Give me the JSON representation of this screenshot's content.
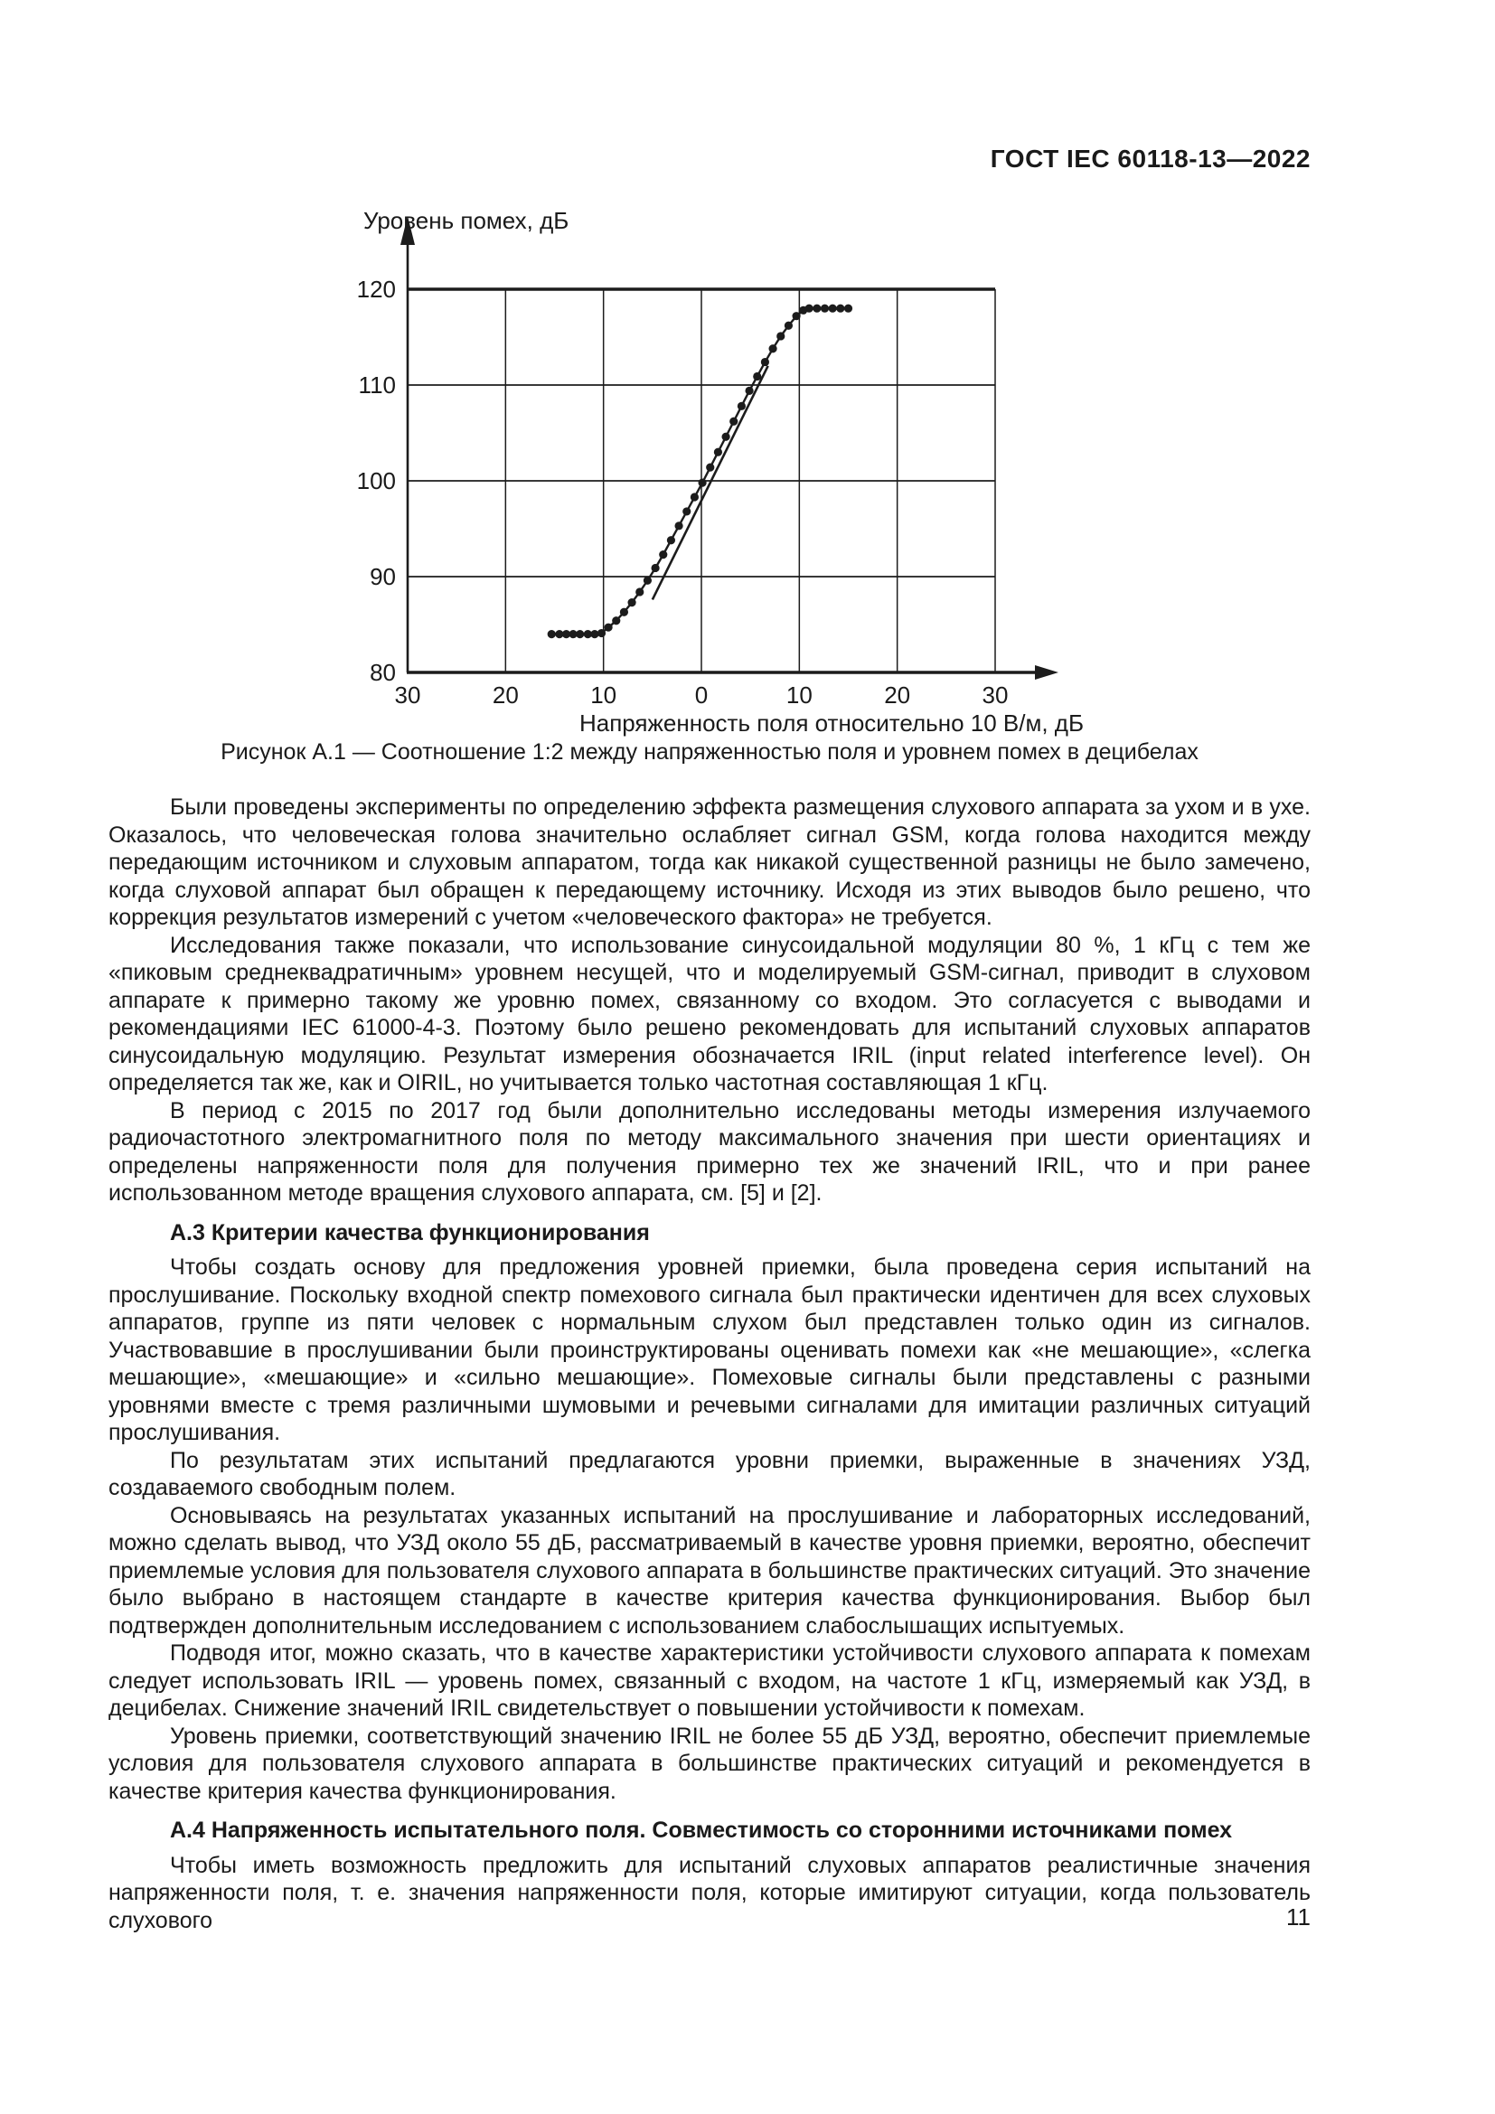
{
  "page": {
    "header": "ГОСТ IEC 60118-13—2022",
    "page_number": "11"
  },
  "figure": {
    "caption": "Рисунок А.1 — Соотношение 1:2 между напряженностью поля и уровнем помех в децибелах"
  },
  "chart_data": {
    "type": "scatter",
    "title": "",
    "ylabel": "Уровень помех, дБ",
    "xlabel": "Напряженность поля относительно 10 В/м, дБ",
    "xlim": [
      -30,
      30
    ],
    "ylim": [
      80,
      120
    ],
    "x_ticks": [
      -30,
      -20,
      -10,
      0,
      10,
      20,
      30
    ],
    "x_tick_labels": [
      "30",
      "20",
      "10",
      "0",
      "10",
      "20",
      "30"
    ],
    "y_ticks": [
      80,
      90,
      100,
      110,
      120
    ],
    "y_tick_labels": [
      "80",
      "90",
      "100",
      "110",
      "120"
    ],
    "grid": true,
    "legend": false,
    "ink_color": "#1c1c1c",
    "series": [
      {
        "name": "measured-interference-level",
        "style": "dots-with-line",
        "points": [
          [
            -15.3,
            84
          ],
          [
            -14.5,
            84
          ],
          [
            -13.8,
            84
          ],
          [
            -13.1,
            84
          ],
          [
            -12.4,
            84
          ],
          [
            -11.6,
            84
          ],
          [
            -10.9,
            84
          ],
          [
            -10.2,
            84.1
          ],
          [
            -9.5,
            84.7
          ],
          [
            -8.7,
            85.4
          ],
          [
            -7.9,
            86.3
          ],
          [
            -7.1,
            87.3
          ],
          [
            -6.3,
            88.4
          ],
          [
            -5.5,
            89.6
          ],
          [
            -4.7,
            90.9
          ],
          [
            -3.9,
            92.3
          ],
          [
            -3.1,
            93.8
          ],
          [
            -2.3,
            95.3
          ],
          [
            -1.5,
            96.8
          ],
          [
            -0.7,
            98.3
          ],
          [
            0.1,
            99.8
          ],
          [
            0.9,
            101.4
          ],
          [
            1.7,
            103
          ],
          [
            2.5,
            104.6
          ],
          [
            3.3,
            106.2
          ],
          [
            4.1,
            107.8
          ],
          [
            4.9,
            109.4
          ],
          [
            5.7,
            110.9
          ],
          [
            6.5,
            112.4
          ],
          [
            7.3,
            113.8
          ],
          [
            8.1,
            115.1
          ],
          [
            8.9,
            116.2
          ],
          [
            9.7,
            117.2
          ],
          [
            10.4,
            117.8
          ],
          [
            11,
            118
          ],
          [
            11.8,
            118
          ],
          [
            12.6,
            118
          ],
          [
            13.4,
            118
          ],
          [
            14.2,
            118
          ],
          [
            15,
            118
          ]
        ]
      },
      {
        "name": "one-to-two-reference-line",
        "style": "line",
        "points": [
          [
            -5.0,
            87.6
          ],
          [
            6.8,
            112.0
          ]
        ]
      }
    ]
  },
  "content": {
    "blocks": [
      {
        "type": "p",
        "text": "Были проведены эксперименты по определению эффекта размещения слухового аппарата за ухом и в ухе. Оказалось, что человеческая голова значительно ослабляет сигнал GSM, когда голова находится между передающим источником и слуховым аппаратом, тогда как никакой существенной разницы не было замечено, когда слуховой аппарат был обращен к передающему источнику. Исходя из этих выводов было решено, что коррекция результатов измерений с учетом «человеческого фактора» не требуется."
      },
      {
        "type": "p",
        "text": "Исследования также показали, что использование синусоидальной модуляции 80 %, 1 кГц с тем же «пиковым среднеквадратичным» уровнем несущей, что и моделируемый GSM-сигнал, приводит в слуховом аппарате к примерно такому же уровню помех, связанному со входом. Это согласуется с выводами и рекомендациями IEC 61000-4-3. Поэтому было решено рекомендовать для испытаний слуховых аппаратов синусоидальную модуляцию. Результат измерения обозначается IRIL (input related interference level). Он определяется так же, как и OIRIL, но учитывается только частотная составляющая 1 кГц."
      },
      {
        "type": "p",
        "text": "В период с 2015 по 2017 год были дополнительно исследованы методы измерения излучаемого радиочастотного электромагнитного поля по методу максимального значения при шести ориентациях и определены напряженности поля для получения примерно тех же значений IRIL, что и при ранее использованном методе вращения слухового аппарата, см. [5] и [2]."
      },
      {
        "type": "h",
        "text": "А.3 Критерии качества функционирования"
      },
      {
        "type": "p",
        "text": "Чтобы создать основу для предложения уровней приемки, была проведена серия испытаний на прослушивание. Поскольку входной спектр помехового сигнала был практически идентичен для всех слуховых аппаратов, группе из пяти человек с нормальным слухом был представлен только один из сигналов. Участвовавшие в прослушивании были проинструктированы оценивать помехи как «не мешающие», «слегка мешающие», «мешающие» и «сильно мешающие». Помеховые сигналы были представлены с разными уровнями вместе с тремя различными шумовыми и речевыми сигналами для имитации различных ситуаций прослушивания."
      },
      {
        "type": "p",
        "text": "По результатам этих испытаний предлагаются уровни приемки, выраженные в значениях УЗД, создаваемого свободным полем."
      },
      {
        "type": "p",
        "text": "Основываясь на результатах указанных испытаний на прослушивание и лабораторных исследований, можно сделать вывод, что УЗД около 55 дБ, рассматриваемый в качестве уровня приемки, вероятно, обеспечит приемлемые условия для пользователя слухового аппарата в большинстве практических ситуаций. Это значение было выбрано в настоящем стандарте в качестве критерия качества функционирования. Выбор был подтвержден дополнительным исследованием с использованием слабослышащих испытуемых."
      },
      {
        "type": "p",
        "text": "Подводя итог, можно сказать, что в качестве характеристики устойчивости слухового аппарата к помехам следует использовать IRIL — уровень помех, связанный с входом, на частоте 1 кГц, измеряемый как УЗД, в децибелах. Снижение значений IRIL свидетельствует о повышении устойчивости к помехам."
      },
      {
        "type": "p",
        "text": "Уровень приемки, соответствующий значению IRIL не более 55 дБ УЗД, вероятно, обеспечит приемлемые условия для пользователя слухового аппарата в большинстве практических ситуаций и рекомендуется в качестве критерия качества функционирования."
      },
      {
        "type": "h",
        "text": "А.4 Напряженность испытательного поля. Совместимость со сторонними источниками помех"
      },
      {
        "type": "p",
        "text": "Чтобы иметь возможность предложить для испытаний слуховых аппаратов реалистичные значения напряженности поля, т. е. значения напряженности поля, которые имитируют ситуации, когда пользователь слухового"
      }
    ]
  }
}
